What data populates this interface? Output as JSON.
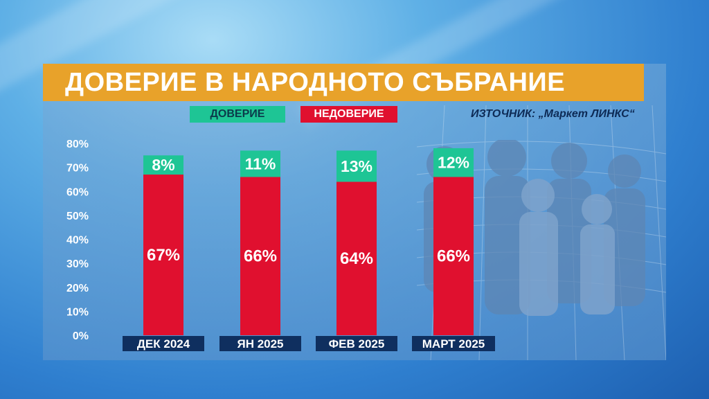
{
  "title": "ДОВЕРИЕ В НАРОДНОТО СЪБРАНИЕ",
  "source": "ИЗТОЧНИК: „Маркет ЛИНКС“",
  "colors": {
    "trust": "#1ec595",
    "distrust": "#e0102f",
    "title_bar": "#e8a22a",
    "category_box": "#0f2f5f"
  },
  "chart_data": {
    "type": "bar",
    "stacked": true,
    "categories": [
      "ДЕК 2024",
      "ЯН 2025",
      "ФЕВ 2025",
      "МАРТ 2025"
    ],
    "series": [
      {
        "name": "НЕДОВЕРИЕ",
        "values": [
          67,
          66,
          64,
          66
        ],
        "labels": [
          "67%",
          "66%",
          "64%",
          "66%"
        ]
      },
      {
        "name": "ДОВЕРИЕ",
        "values": [
          8,
          11,
          13,
          12
        ],
        "labels": [
          "8%",
          "11%",
          "13%",
          "12%"
        ]
      }
    ],
    "yticks": [
      "0%",
      "10%",
      "20%",
      "30%",
      "40%",
      "50%",
      "60%",
      "70%",
      "80%"
    ],
    "ylim": [
      0,
      80
    ],
    "legend": "top"
  }
}
